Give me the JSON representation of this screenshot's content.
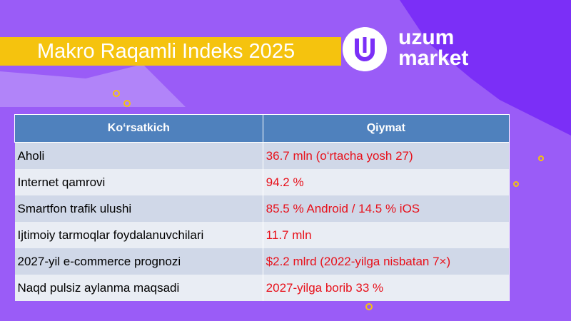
{
  "header": {
    "title": "Makro Raqamli Indeks 2025",
    "logo_line1": "uzum",
    "logo_line2": "market"
  },
  "table": {
    "columns": [
      "Ko‘rsatkich",
      "Qiymat"
    ],
    "rows": [
      [
        "Aholi",
        "36.7 mln (o‘rtacha yosh 27)"
      ],
      [
        "Internet qamrovi",
        "94.2 %"
      ],
      [
        "Smartfon trafik ulushi",
        "85.5 % Android / 14.5 % iOS"
      ],
      [
        "Ijtimoiy tarmoqlar foydalanuvchilari",
        "11.7 mln"
      ],
      [
        "2027-yil e-commerce prognozi",
        "$2.2 mlrd (2022-yilga nisbatan 7×)"
      ],
      [
        "Naqd pulsiz aylanma maqsadi",
        "2027-yilga borib 33 %"
      ]
    ]
  }
}
